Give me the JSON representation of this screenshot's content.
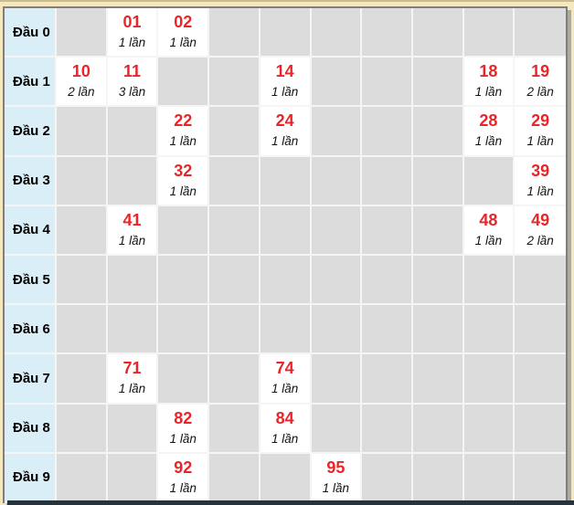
{
  "page": {
    "background": "#f5e7bf",
    "accent_red": "#e8262a",
    "label_bg": "#daeef8",
    "empty_cell_bg": "#dcdcdc",
    "filled_cell_bg": "#ffffff",
    "outer_border": "#7f7f7f",
    "bottom_bar_color": "#26323c"
  },
  "table": {
    "columns": 10,
    "rows": [
      {
        "label": "Đầu 0",
        "cells": [
          null,
          {
            "number": "01",
            "count": "1 lần"
          },
          {
            "number": "02",
            "count": "1 lần"
          },
          null,
          null,
          null,
          null,
          null,
          null,
          null
        ]
      },
      {
        "label": "Đầu 1",
        "cells": [
          {
            "number": "10",
            "count": "2 lần"
          },
          {
            "number": "11",
            "count": "3 lần"
          },
          null,
          null,
          {
            "number": "14",
            "count": "1 lần"
          },
          null,
          null,
          null,
          {
            "number": "18",
            "count": "1 lần"
          },
          {
            "number": "19",
            "count": "2 lần"
          }
        ]
      },
      {
        "label": "Đầu 2",
        "cells": [
          null,
          null,
          {
            "number": "22",
            "count": "1 lần"
          },
          null,
          {
            "number": "24",
            "count": "1 lần"
          },
          null,
          null,
          null,
          {
            "number": "28",
            "count": "1 lần"
          },
          {
            "number": "29",
            "count": "1 lần"
          }
        ]
      },
      {
        "label": "Đầu 3",
        "cells": [
          null,
          null,
          {
            "number": "32",
            "count": "1 lần"
          },
          null,
          null,
          null,
          null,
          null,
          null,
          {
            "number": "39",
            "count": "1 lần"
          }
        ]
      },
      {
        "label": "Đầu 4",
        "cells": [
          null,
          {
            "number": "41",
            "count": "1 lần"
          },
          null,
          null,
          null,
          null,
          null,
          null,
          {
            "number": "48",
            "count": "1 lần"
          },
          {
            "number": "49",
            "count": "2 lần"
          }
        ]
      },
      {
        "label": "Đầu 5",
        "cells": [
          null,
          null,
          null,
          null,
          null,
          null,
          null,
          null,
          null,
          null
        ]
      },
      {
        "label": "Đầu 6",
        "cells": [
          null,
          null,
          null,
          null,
          null,
          null,
          null,
          null,
          null,
          null
        ]
      },
      {
        "label": "Đầu 7",
        "cells": [
          null,
          {
            "number": "71",
            "count": "1 lần"
          },
          null,
          null,
          {
            "number": "74",
            "count": "1 lần"
          },
          null,
          null,
          null,
          null,
          null
        ]
      },
      {
        "label": "Đầu 8",
        "cells": [
          null,
          null,
          {
            "number": "82",
            "count": "1 lần"
          },
          null,
          {
            "number": "84",
            "count": "1 lần"
          },
          null,
          null,
          null,
          null,
          null
        ]
      },
      {
        "label": "Đầu 9",
        "cells": [
          null,
          null,
          {
            "number": "92",
            "count": "1 lần"
          },
          null,
          null,
          {
            "number": "95",
            "count": "1 lần"
          },
          null,
          null,
          null,
          null
        ]
      }
    ]
  }
}
